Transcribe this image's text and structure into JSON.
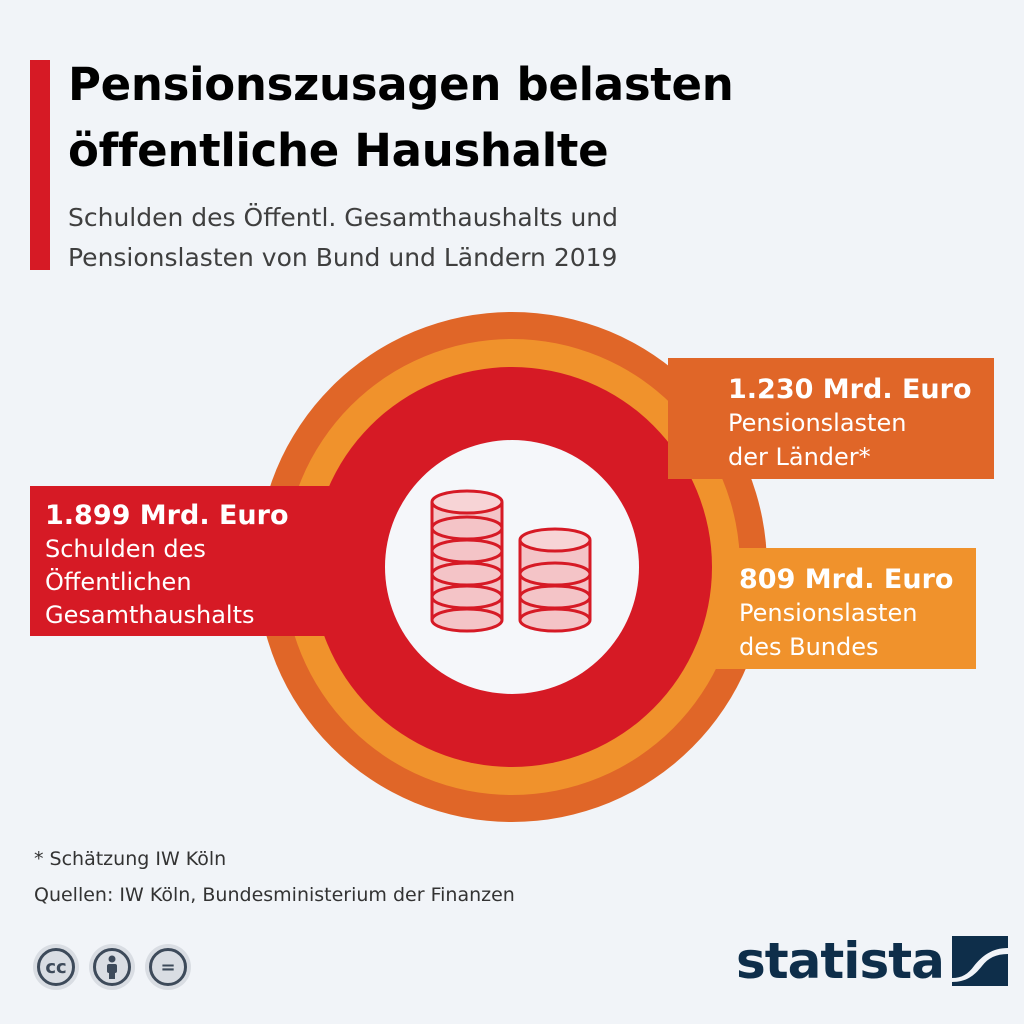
{
  "header": {
    "title": "Pensionszusagen belasten\nöffentliche Haushalte",
    "subtitle": "Schulden des Öffentl. Gesamthaushalts und\nPensionslasten von Bund und Ländern 2019"
  },
  "chart_data": {
    "type": "nested-circles",
    "unit": "Mrd. Euro",
    "series": [
      {
        "value": 1899,
        "value_label": "1.899 Mrd. Euro",
        "label_lines": [
          "Schulden des",
          "Öffentlichen",
          "Gesamthaushalts"
        ],
        "color": "#d61a25"
      },
      {
        "value": 809,
        "value_label": "809 Mrd. Euro",
        "label_lines": [
          "Pensionslasten",
          "des Bundes"
        ],
        "color": "#f0922c"
      },
      {
        "value": 1230,
        "value_label": "1.230 Mrd. Euro",
        "label_lines": [
          "Pensionslasten",
          "der Länder*"
        ],
        "color": "#e06628"
      }
    ],
    "center_icon": "coin-stacks-icon"
  },
  "footer": {
    "footnote": "* Schätzung IW Köln",
    "sources": "Quellen: IW Köln, Bundesministerium der Finanzen",
    "license_icons": [
      "cc-icon",
      "attribution-icon",
      "no-derivatives-icon"
    ],
    "cc_text": "cc",
    "equals_text": "=",
    "brand": "statista"
  },
  "colors": {
    "accent": "#d61a25",
    "background": "#f1f4f8",
    "brand": "#0e2e4a"
  }
}
